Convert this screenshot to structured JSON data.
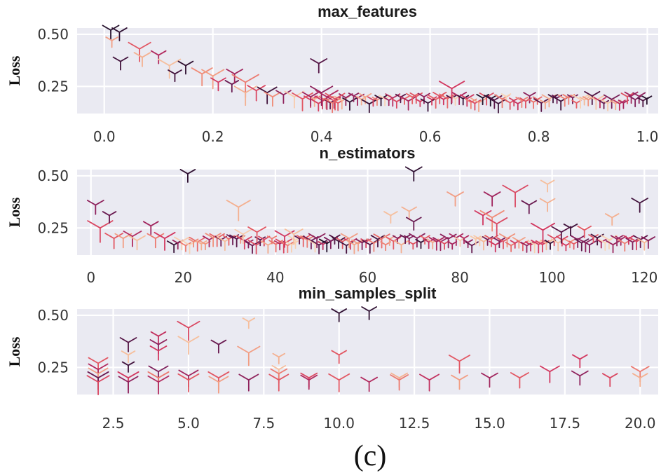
{
  "figure_label": "(c)",
  "chart_data": [
    {
      "type": "scatter",
      "title": "max_features",
      "xlabel": "",
      "ylabel": "Loss",
      "xlim": [
        -0.05,
        1.02
      ],
      "ylim": [
        0.12,
        0.53
      ],
      "xticks": [
        {
          "value": 0.0,
          "label": "0.0"
        },
        {
          "value": 0.2,
          "label": "0.2"
        },
        {
          "value": 0.4,
          "label": "0.4"
        },
        {
          "value": 0.6,
          "label": "0.6"
        },
        {
          "value": 0.8,
          "label": "0.8"
        },
        {
          "value": 1.0,
          "label": "1.0"
        }
      ],
      "yticks": [
        {
          "value": 0.25,
          "label": "0.25"
        },
        {
          "value": 0.5,
          "label": "0.50"
        }
      ],
      "grid": true,
      "marker": "tri_down",
      "points": [
        [
          0.012,
          0.52,
          0.02,
          0.6
        ],
        [
          0.014,
          0.47,
          0.8,
          0.3
        ],
        [
          0.028,
          0.51,
          0.05,
          0.5
        ],
        [
          0.03,
          0.37,
          0.1,
          0.5
        ],
        [
          0.065,
          0.43,
          0.6,
          1.0
        ],
        [
          0.07,
          0.39,
          0.85,
          0.6
        ],
        [
          0.1,
          0.4,
          0.4,
          0.5
        ],
        [
          0.12,
          0.35,
          0.9,
          1.0
        ],
        [
          0.13,
          0.31,
          0.1,
          0.4
        ],
        [
          0.15,
          0.35,
          0.05,
          0.5
        ],
        [
          0.18,
          0.31,
          0.75,
          0.9
        ],
        [
          0.2,
          0.3,
          0.8,
          1.0
        ],
        [
          0.21,
          0.27,
          0.5,
          0.5
        ],
        [
          0.235,
          0.26,
          0.2,
          0.4
        ],
        [
          0.24,
          0.31,
          0.35,
          0.6
        ],
        [
          0.26,
          0.27,
          0.7,
          1.3
        ],
        [
          0.26,
          0.22,
          0.85,
          1.0
        ],
        [
          0.28,
          0.23,
          0.55,
          0.7
        ],
        [
          0.3,
          0.22,
          0.1,
          0.8
        ],
        [
          0.31,
          0.2,
          0.75,
          0.6
        ],
        [
          0.33,
          0.21,
          0.3,
          0.5
        ],
        [
          0.35,
          0.2,
          0.95,
          0.8
        ],
        [
          0.365,
          0.19,
          0.6,
          0.9
        ],
        [
          0.38,
          0.2,
          0.35,
          0.6
        ],
        [
          0.395,
          0.36,
          0.15,
          0.6
        ],
        [
          0.4,
          0.22,
          0.3,
          1.0
        ],
        [
          0.41,
          0.2,
          0.4,
          1.0
        ],
        [
          0.42,
          0.17,
          0.7,
          0.6
        ],
        [
          0.425,
          0.19,
          0.6,
          0.8
        ],
        [
          0.64,
          0.24,
          0.5,
          1.2
        ]
      ],
      "band": {
        "x_start": 0.38,
        "x_end": 1.0,
        "x_step": 0.0072,
        "loss_center": 0.185,
        "loss_spread": 0.02,
        "seed": 11
      }
    },
    {
      "type": "scatter",
      "title": "n_estimators",
      "xlabel": "",
      "ylabel": "Loss",
      "xlim": [
        -3,
        123
      ],
      "ylim": [
        0.12,
        0.53
      ],
      "xticks": [
        {
          "value": 0,
          "label": "0"
        },
        {
          "value": 20,
          "label": "20"
        },
        {
          "value": 40,
          "label": "40"
        },
        {
          "value": 60,
          "label": "60"
        },
        {
          "value": 80,
          "label": "80"
        },
        {
          "value": 100,
          "label": "100"
        },
        {
          "value": 120,
          "label": "120"
        }
      ],
      "yticks": [
        {
          "value": 0.25,
          "label": "0.25"
        },
        {
          "value": 0.5,
          "label": "0.50"
        }
      ],
      "grid": true,
      "marker": "tri_down",
      "points": [
        [
          1,
          0.36,
          0.3,
          0.6
        ],
        [
          2,
          0.25,
          0.55,
          1.2
        ],
        [
          4,
          0.31,
          0.2,
          0.4
        ],
        [
          5,
          0.2,
          0.6,
          0.7
        ],
        [
          7,
          0.2,
          0.8,
          0.6
        ],
        [
          9,
          0.21,
          0.4,
          0.7
        ],
        [
          10,
          0.19,
          0.9,
          0.6
        ],
        [
          13,
          0.26,
          0.35,
          0.5
        ],
        [
          14,
          0.2,
          0.7,
          0.6
        ],
        [
          16,
          0.2,
          0.5,
          0.9
        ],
        [
          21,
          0.51,
          0.05,
          0.5
        ],
        [
          32,
          0.35,
          0.85,
          1.1
        ],
        [
          33,
          0.22,
          0.95,
          0.6
        ],
        [
          36,
          0.23,
          0.6,
          0.7
        ],
        [
          42,
          0.21,
          0.5,
          0.8
        ],
        [
          44,
          0.22,
          0.9,
          0.7
        ],
        [
          49,
          0.2,
          0.3,
          0.6
        ],
        [
          56,
          0.2,
          0.8,
          0.6
        ],
        [
          65,
          0.31,
          0.9,
          0.4
        ],
        [
          69,
          0.33,
          0.85,
          0.5
        ],
        [
          70,
          0.52,
          0.05,
          0.6
        ],
        [
          70,
          0.28,
          0.2,
          0.5
        ],
        [
          79,
          0.4,
          0.8,
          0.6
        ],
        [
          85,
          0.31,
          0.5,
          0.6
        ],
        [
          87,
          0.3,
          0.75,
          1.1
        ],
        [
          87,
          0.4,
          0.35,
          0.6
        ],
        [
          88,
          0.27,
          0.55,
          0.9
        ],
        [
          92,
          0.42,
          0.55,
          1.2
        ],
        [
          95,
          0.36,
          0.2,
          0.5
        ],
        [
          98,
          0.24,
          0.5,
          1.1
        ],
        [
          99,
          0.46,
          0.9,
          0.4
        ],
        [
          99,
          0.37,
          0.85,
          0.5
        ],
        [
          102,
          0.23,
          0.15,
          0.8
        ],
        [
          104,
          0.25,
          0.1,
          0.4
        ],
        [
          107,
          0.24,
          0.6,
          0.4
        ],
        [
          113,
          0.3,
          0.85,
          0.4
        ],
        [
          119,
          0.37,
          0.1,
          0.6
        ]
      ],
      "band": {
        "x_start": 18,
        "x_end": 121,
        "x_step": 0.85,
        "loss_center": 0.185,
        "loss_spread": 0.02,
        "seed": 23
      }
    },
    {
      "type": "scatter",
      "title": "min_samples_split",
      "xlabel": "",
      "ylabel": "Loss",
      "xlim": [
        1.3,
        20.6
      ],
      "ylim": [
        0.12,
        0.53
      ],
      "xticks": [
        {
          "value": 2.5,
          "label": "2.5"
        },
        {
          "value": 5.0,
          "label": "5.0"
        },
        {
          "value": 7.5,
          "label": "7.5"
        },
        {
          "value": 10.0,
          "label": "10.0"
        },
        {
          "value": 12.5,
          "label": "12.5"
        },
        {
          "value": 15.0,
          "label": "15.0"
        },
        {
          "value": 17.5,
          "label": "17.5"
        },
        {
          "value": 20.0,
          "label": "20.0"
        }
      ],
      "yticks": [
        {
          "value": 0.25,
          "label": "0.25"
        },
        {
          "value": 0.5,
          "label": "0.50"
        }
      ],
      "grid": true,
      "marker": "tri_down",
      "points": [
        [
          2,
          0.27,
          0.6,
          0.8
        ],
        [
          2,
          0.24,
          0.4,
          0.8
        ],
        [
          2,
          0.22,
          0.8,
          0.8
        ],
        [
          2,
          0.2,
          0.2,
          0.9
        ],
        [
          2,
          0.18,
          0.55,
          1.0
        ],
        [
          3,
          0.37,
          0.15,
          0.6
        ],
        [
          3,
          0.31,
          0.9,
          0.4
        ],
        [
          3,
          0.26,
          0.1,
          0.3
        ],
        [
          3,
          0.2,
          0.5,
          0.9
        ],
        [
          3,
          0.18,
          0.3,
          0.8
        ],
        [
          4,
          0.4,
          0.45,
          0.5
        ],
        [
          4,
          0.36,
          0.3,
          0.6
        ],
        [
          4,
          0.33,
          0.5,
          0.6
        ],
        [
          4,
          0.23,
          0.25,
          0.8
        ],
        [
          4,
          0.2,
          0.7,
          0.9
        ],
        [
          4,
          0.18,
          0.4,
          0.9
        ],
        [
          5,
          0.44,
          0.55,
          1.0
        ],
        [
          5,
          0.37,
          0.9,
          0.9
        ],
        [
          5,
          0.21,
          0.35,
          0.8
        ],
        [
          5,
          0.19,
          0.6,
          0.9
        ],
        [
          6,
          0.36,
          0.2,
          0.5
        ],
        [
          6,
          0.2,
          0.6,
          0.9
        ],
        [
          6,
          0.18,
          0.8,
          0.8
        ],
        [
          7,
          0.47,
          0.9,
          0.3
        ],
        [
          7,
          0.32,
          0.8,
          1.0
        ],
        [
          7,
          0.19,
          0.3,
          0.8
        ],
        [
          8,
          0.3,
          0.85,
          0.3
        ],
        [
          8,
          0.24,
          0.9,
          0.4
        ],
        [
          8,
          0.22,
          0.7,
          0.6
        ],
        [
          8,
          0.19,
          0.6,
          0.8
        ],
        [
          9,
          0.2,
          0.55,
          0.6
        ],
        [
          9,
          0.19,
          0.4,
          0.6
        ],
        [
          10,
          0.51,
          0.05,
          0.5
        ],
        [
          10,
          0.31,
          0.6,
          0.5
        ],
        [
          10,
          0.19,
          0.6,
          0.9
        ],
        [
          11,
          0.52,
          0.05,
          0.5
        ],
        [
          11,
          0.18,
          0.4,
          0.6
        ],
        [
          12,
          0.2,
          0.85,
          0.6
        ],
        [
          12,
          0.19,
          0.7,
          0.7
        ],
        [
          13,
          0.19,
          0.45,
          0.8
        ],
        [
          14,
          0.28,
          0.6,
          0.9
        ],
        [
          14,
          0.19,
          0.8,
          0.6
        ],
        [
          15,
          0.2,
          0.35,
          0.6
        ],
        [
          16,
          0.2,
          0.6,
          0.7
        ],
        [
          17,
          0.23,
          0.5,
          0.8
        ],
        [
          18,
          0.29,
          0.5,
          0.5
        ],
        [
          18,
          0.21,
          0.3,
          0.6
        ],
        [
          19,
          0.2,
          0.55,
          0.5
        ],
        [
          20,
          0.23,
          0.7,
          0.7
        ],
        [
          20,
          0.2,
          0.85,
          0.5
        ]
      ]
    }
  ]
}
